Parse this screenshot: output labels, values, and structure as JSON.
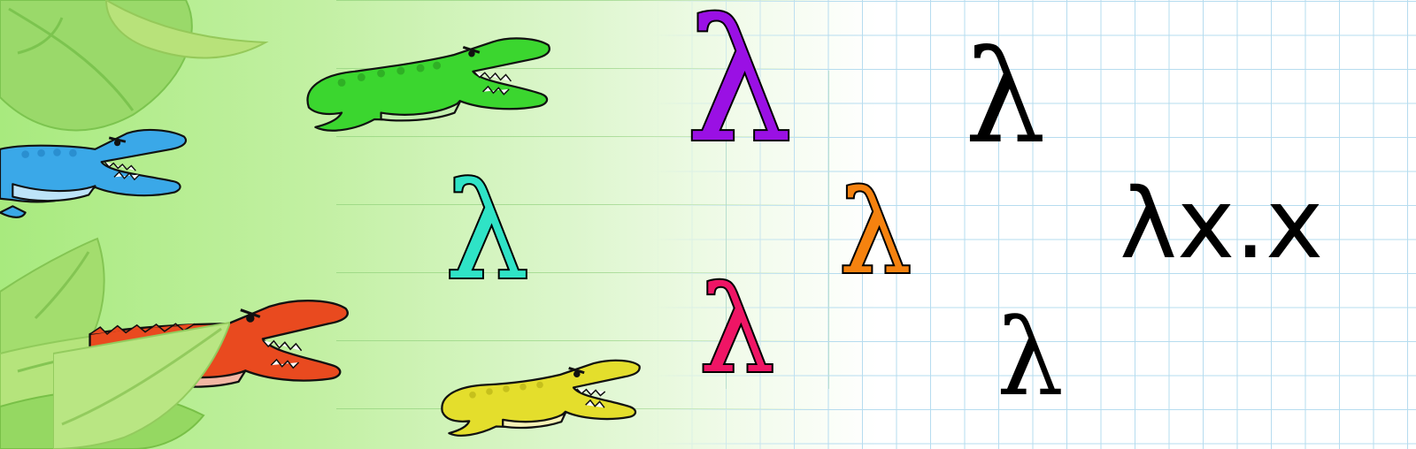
{
  "scene": {
    "lambda_symbol": "λ",
    "expression": "λx.x",
    "colors": {
      "purple": "#9a10e4",
      "cyan": "#2fe3c6",
      "orange": "#f5820f",
      "crimson": "#ef1565",
      "black": "#000000"
    },
    "alligators": [
      {
        "color": "#3aa8e8",
        "belly": "#bde3f8",
        "icon": "alligator-icon"
      },
      {
        "color": "#3bd62f",
        "belly": "#c4f0b0",
        "icon": "alligator-icon"
      },
      {
        "color": "#e94a1f",
        "belly": "#f3b7a4",
        "icon": "alligator-icon"
      },
      {
        "color": "#e4de2c",
        "belly": "#f7f2b7",
        "icon": "alligator-icon"
      }
    ]
  }
}
